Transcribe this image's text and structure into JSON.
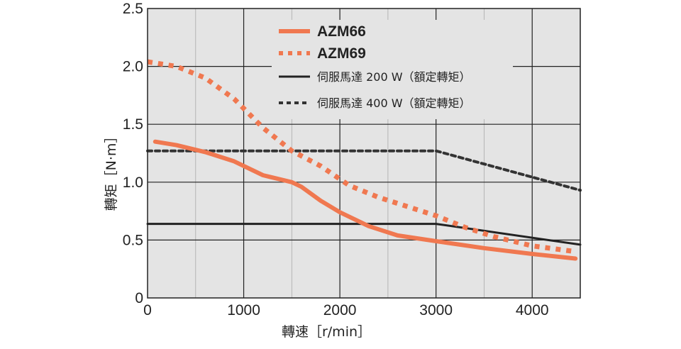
{
  "chart_data": {
    "type": "line",
    "xlabel": "轉速［r/min］",
    "ylabel": "轉矩［N·m］",
    "xlim": [
      0,
      4500
    ],
    "ylim": [
      0,
      2.5
    ],
    "x_ticks": [
      "0",
      "1000",
      "2000",
      "3000",
      "4000"
    ],
    "y_ticks": [
      "0",
      "0.5",
      "1.0",
      "1.5",
      "2.0",
      "2.5"
    ],
    "grid": true,
    "legend_position": "top-center",
    "series": [
      {
        "name": "AZM66",
        "color": "#f07850",
        "style": "solid",
        "x": [
          80,
          300,
          600,
          900,
          1200,
          1500,
          1600,
          1800,
          2000,
          2300,
          2600,
          3000,
          3500,
          4000,
          4450
        ],
        "y": [
          1.35,
          1.32,
          1.26,
          1.18,
          1.06,
          1.0,
          0.96,
          0.84,
          0.74,
          0.62,
          0.54,
          0.49,
          0.43,
          0.38,
          0.34
        ]
      },
      {
        "name": "AZM69",
        "color": "#f07850",
        "style": "dotted",
        "x": [
          0,
          300,
          600,
          900,
          1200,
          1500,
          1800,
          2100,
          2400,
          2700,
          3000,
          3300,
          3600,
          4000,
          4450
        ],
        "y": [
          2.04,
          2.0,
          1.9,
          1.72,
          1.47,
          1.27,
          1.14,
          0.97,
          0.87,
          0.79,
          0.71,
          0.61,
          0.53,
          0.45,
          0.4
        ]
      },
      {
        "name": "伺服馬達 200 W（額定轉矩）",
        "color": "#222222",
        "style": "solid",
        "x": [
          0,
          3000,
          4500
        ],
        "y": [
          0.64,
          0.64,
          0.46
        ]
      },
      {
        "name": "伺服馬達 400 W（額定轉矩）",
        "color": "#333333",
        "style": "dashed",
        "x": [
          0,
          3000,
          4500
        ],
        "y": [
          1.27,
          1.27,
          0.93
        ]
      }
    ]
  },
  "legend": [
    {
      "label": "AZM66",
      "bold": true
    },
    {
      "label": "AZM69",
      "bold": true
    },
    {
      "label": "伺服馬達 200 W（額定轉矩）",
      "bold": false
    },
    {
      "label": "伺服馬達 400 W（額定轉矩）",
      "bold": false
    }
  ]
}
